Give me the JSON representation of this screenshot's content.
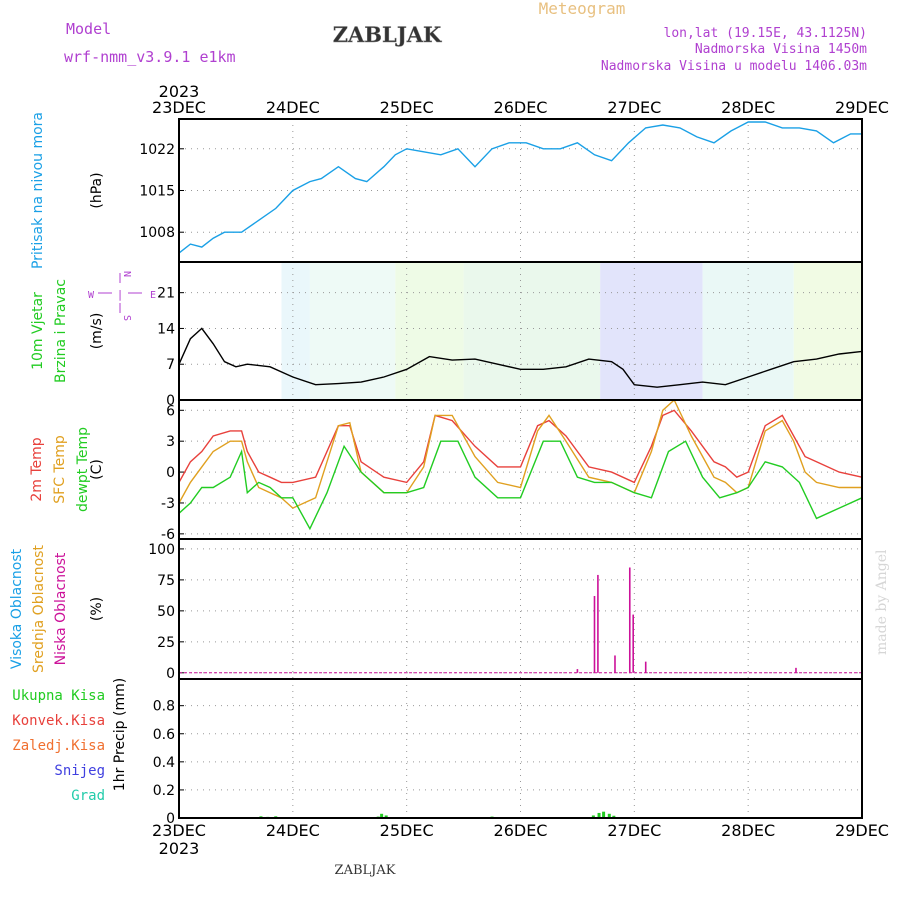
{
  "header": {
    "model_label": "Model",
    "model_name": "wrf-nmm_v3.9.1 e1km",
    "title": "ZABLJAK",
    "meteogram": "Meteogram",
    "lonlat": "lon,lat (19.15E, 43.1125N)",
    "elevation": "Nadmorska Visina 1450m",
    "elevation_model": "Nadmorska Visina u modelu 1406.03m",
    "footer_title": "ZABLJAK",
    "watermark": "made by Angel"
  },
  "colors": {
    "pressure": "#1aa0e6",
    "temp2m": "#e8413c",
    "sfc_temp": "#e0a020",
    "dewpt": "#22cc22",
    "high_cloud": "#1aa0e6",
    "mid_cloud": "#e0a020",
    "low_cloud": "#cc1199",
    "purple_text": "#b040d0",
    "wind_label": "#22cc22",
    "precip_total": "#22cc22",
    "precip_conv": "#e8413c",
    "precip_frz": "#f07030",
    "precip_snow": "#4040e0",
    "precip_hail": "#22ccaa",
    "meteogram_title": "#e8c080"
  },
  "chart_data": [
    {
      "id": "pressure",
      "type": "line",
      "ylabel_lines": [
        "Pritisak na nivou mora"
      ],
      "unit": "(hPa)",
      "x_year": "2023",
      "x_ticks": [
        "23DEC",
        "24DEC",
        "25DEC",
        "26DEC",
        "27DEC",
        "28DEC",
        "29DEC"
      ],
      "y_ticks": [
        1008,
        1015,
        1022
      ],
      "ylim": [
        1003,
        1027
      ],
      "grid": true,
      "series": [
        {
          "key": "pressure",
          "color_key": "pressure",
          "x": [
            0,
            0.1,
            0.2,
            0.3,
            0.4,
            0.55,
            0.7,
            0.85,
            1.0,
            1.15,
            1.25,
            1.4,
            1.55,
            1.65,
            1.8,
            1.9,
            2.0,
            2.15,
            2.3,
            2.45,
            2.6,
            2.75,
            2.9,
            3.05,
            3.2,
            3.35,
            3.5,
            3.65,
            3.8,
            3.95,
            4.1,
            4.25,
            4.4,
            4.55,
            4.7,
            4.85,
            5.0,
            5.15,
            5.3,
            5.45,
            5.6,
            5.75,
            5.9,
            6.0
          ],
          "y": [
            1004.5,
            1006,
            1005.5,
            1007,
            1008,
            1008,
            1010,
            1012,
            1015,
            1016.5,
            1017,
            1019,
            1017,
            1016.5,
            1019,
            1021,
            1022,
            1021.5,
            1021,
            1022,
            1019,
            1022,
            1023,
            1023,
            1022,
            1022,
            1023,
            1021,
            1020,
            1023,
            1025.5,
            1026,
            1025.5,
            1024,
            1023,
            1025,
            1026.5,
            1026.5,
            1025.5,
            1025.5,
            1025,
            1023,
            1024.5,
            1024.5
          ]
        }
      ]
    },
    {
      "id": "wind",
      "type": "line",
      "ylabel_lines": [
        "10m Vjetar",
        "Brzina i Pravac"
      ],
      "unit": "(m/s)",
      "compass": {
        "n": "N",
        "s": "S",
        "w": "W",
        "e": "E"
      },
      "y_ticks": [
        0,
        7,
        14,
        21
      ],
      "ylim": [
        0,
        27
      ],
      "grid": true,
      "series": [
        {
          "key": "wind_speed",
          "color": "#000000",
          "x": [
            0,
            0.1,
            0.2,
            0.3,
            0.4,
            0.5,
            0.6,
            0.8,
            1.0,
            1.2,
            1.4,
            1.6,
            1.8,
            2.0,
            2.2,
            2.4,
            2.6,
            2.8,
            3.0,
            3.2,
            3.4,
            3.6,
            3.8,
            3.9,
            4.0,
            4.2,
            4.4,
            4.6,
            4.8,
            5.0,
            5.2,
            5.4,
            5.6,
            5.8,
            6.0
          ],
          "y": [
            7,
            12,
            14,
            11,
            7.5,
            6.5,
            7,
            6.5,
            4.5,
            3,
            3.2,
            3.5,
            4.5,
            6,
            8.5,
            7.8,
            8,
            7,
            6,
            6,
            6.5,
            8,
            7.5,
            6,
            3,
            2.5,
            3,
            3.5,
            3,
            4.5,
            6,
            7.5,
            8,
            9,
            9.5
          ]
        }
      ]
    },
    {
      "id": "temperature",
      "type": "line",
      "ylabel_lines": [
        "2m Temp",
        "SFC Temp",
        "dewpt Temp"
      ],
      "unit": "(C)",
      "y_ticks": [
        -6,
        -3,
        0,
        3,
        6
      ],
      "ylim": [
        -6.5,
        7
      ],
      "grid": true,
      "series": [
        {
          "key": "temp2m",
          "color_key": "temp2m",
          "x": [
            0,
            0.1,
            0.2,
            0.3,
            0.45,
            0.55,
            0.6,
            0.7,
            0.8,
            0.9,
            1.0,
            1.2,
            1.4,
            1.5,
            1.6,
            1.8,
            2.0,
            2.15,
            2.25,
            2.4,
            2.6,
            2.8,
            3.0,
            3.15,
            3.25,
            3.4,
            3.6,
            3.8,
            4.0,
            4.15,
            4.25,
            4.35,
            4.5,
            4.7,
            4.8,
            4.9,
            5.0,
            5.15,
            5.3,
            5.4,
            5.5,
            5.6,
            5.8,
            6.0
          ],
          "y": [
            -1,
            1,
            2,
            3.5,
            4,
            4,
            2,
            0,
            -0.5,
            -1,
            -1,
            -0.5,
            4.5,
            4.5,
            1,
            -0.5,
            -1,
            1,
            5.5,
            5,
            2.5,
            0.5,
            0.5,
            4.5,
            5,
            3.5,
            0.5,
            0,
            -1,
            2.5,
            5.5,
            6,
            4,
            1,
            0.5,
            -0.5,
            0,
            4.5,
            5.5,
            3.5,
            1.5,
            1,
            0,
            -0.5
          ]
        },
        {
          "key": "sfc_temp",
          "color_key": "sfc_temp",
          "x": [
            0,
            0.1,
            0.2,
            0.3,
            0.45,
            0.55,
            0.6,
            0.7,
            0.8,
            0.9,
            1.0,
            1.2,
            1.4,
            1.5,
            1.6,
            1.8,
            2.0,
            2.15,
            2.25,
            2.4,
            2.6,
            2.8,
            3.0,
            3.15,
            3.25,
            3.4,
            3.6,
            3.8,
            4.0,
            4.15,
            4.25,
            4.35,
            4.5,
            4.7,
            4.8,
            4.9,
            5.0,
            5.15,
            5.3,
            5.4,
            5.5,
            5.6,
            5.8,
            6.0
          ],
          "y": [
            -3,
            -1,
            0.5,
            2,
            3,
            3,
            1,
            -1.5,
            -2,
            -2.5,
            -3.5,
            -2.5,
            4.5,
            4.8,
            0,
            -2,
            -2,
            0.5,
            5.5,
            5.5,
            1.5,
            -1,
            -1.5,
            4,
            5.5,
            3,
            -0.5,
            -1,
            -2,
            2,
            6,
            7,
            3.5,
            -0.5,
            -1,
            -2,
            -1.5,
            4,
            5,
            3,
            0,
            -1,
            -1.5,
            -1.5
          ]
        },
        {
          "key": "dewpt",
          "color_key": "dewpt",
          "x": [
            0,
            0.1,
            0.2,
            0.3,
            0.45,
            0.55,
            0.6,
            0.7,
            0.8,
            0.9,
            1.0,
            1.15,
            1.3,
            1.45,
            1.6,
            1.8,
            2.0,
            2.15,
            2.3,
            2.45,
            2.6,
            2.8,
            3.0,
            3.2,
            3.35,
            3.5,
            3.65,
            3.8,
            4.0,
            4.15,
            4.3,
            4.45,
            4.6,
            4.75,
            4.9,
            5.0,
            5.15,
            5.3,
            5.45,
            5.6,
            5.8,
            6.0
          ],
          "y": [
            -4,
            -3,
            -1.5,
            -1.5,
            -0.5,
            2,
            -2,
            -1,
            -1.5,
            -2.5,
            -2.5,
            -5.5,
            -2,
            2.5,
            0,
            -2,
            -2,
            -1.5,
            3,
            3,
            -0.5,
            -2.5,
            -2.5,
            3,
            3,
            -0.5,
            -1,
            -1,
            -2,
            -2.5,
            2,
            3,
            -0.5,
            -2.5,
            -2,
            -1.5,
            1,
            0.5,
            -1,
            -4.5,
            -3.5,
            -2.5
          ]
        }
      ]
    },
    {
      "id": "cloud",
      "type": "bar",
      "ylabel_lines": [
        "Visoka Oblacnost",
        "Srednja Oblacnost",
        "Niska Oblacnost"
      ],
      "unit": "(%)",
      "y_ticks": [
        0,
        25,
        50,
        75,
        100
      ],
      "ylim": [
        -5,
        108
      ],
      "grid": true,
      "bars": [
        {
          "x": 3.5,
          "value": 3
        },
        {
          "x": 3.65,
          "value": 62
        },
        {
          "x": 3.68,
          "value": 79
        },
        {
          "x": 3.83,
          "value": 14
        },
        {
          "x": 3.96,
          "value": 85
        },
        {
          "x": 3.99,
          "value": 47
        },
        {
          "x": 4.1,
          "value": 9
        },
        {
          "x": 5.42,
          "value": 4
        }
      ]
    },
    {
      "id": "precip",
      "type": "bar",
      "ylabel_lines": [
        "Ukupna Kisa",
        "Konvek.Kisa",
        "Zaledj.Kisa",
        "Snijeg",
        "Grad"
      ],
      "label_color_keys": [
        "precip_total",
        "precip_conv",
        "precip_frz",
        "precip_snow",
        "precip_hail"
      ],
      "unit": "1hr Precip (mm)",
      "x_ticks": [
        "23DEC",
        "24DEC",
        "25DEC",
        "26DEC",
        "27DEC",
        "28DEC",
        "29DEC"
      ],
      "x_year": "2023",
      "y_ticks": [
        0,
        0.2,
        0.4,
        0.6,
        0.8
      ],
      "ylim": [
        0,
        0.99
      ],
      "grid": true,
      "bars": [
        {
          "x": 0.72,
          "value": 0.012
        },
        {
          "x": 0.78,
          "value": 0.008
        },
        {
          "x": 0.85,
          "value": 0.012
        },
        {
          "x": 1.75,
          "value": 0.01
        },
        {
          "x": 1.78,
          "value": 0.03
        },
        {
          "x": 1.82,
          "value": 0.018
        },
        {
          "x": 2.75,
          "value": 0.01
        },
        {
          "x": 3.64,
          "value": 0.018
        },
        {
          "x": 3.69,
          "value": 0.036
        },
        {
          "x": 3.73,
          "value": 0.045
        },
        {
          "x": 3.78,
          "value": 0.03
        },
        {
          "x": 3.82,
          "value": 0.016
        }
      ]
    }
  ]
}
